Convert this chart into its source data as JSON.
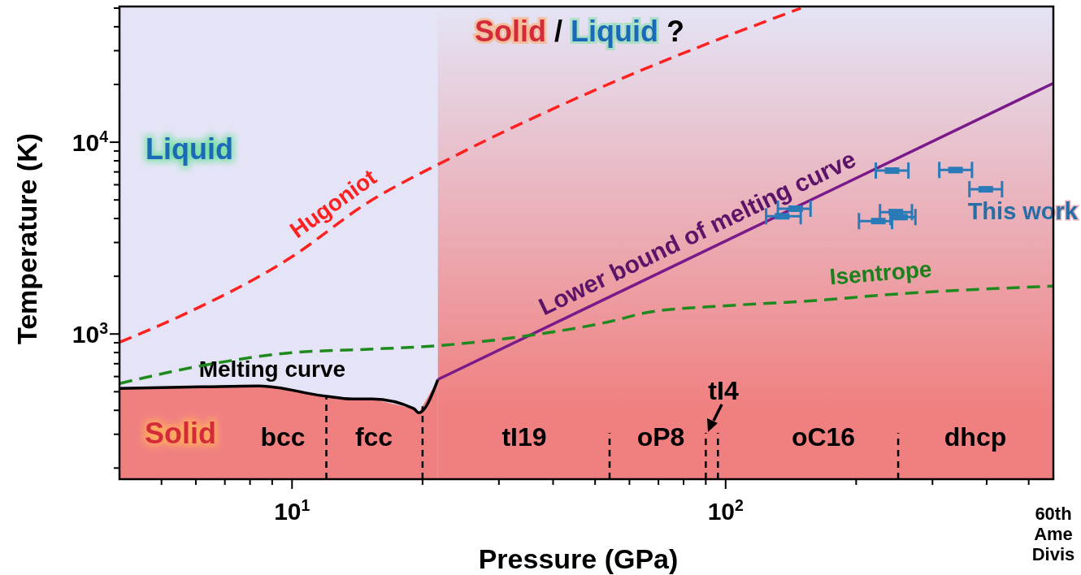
{
  "chart_data": {
    "type": "line",
    "log": "xy",
    "xlabel": "Pressure (GPa)",
    "ylabel": "Temperature (K)",
    "xlim": [
      4,
      570
    ],
    "ylim": [
      175,
      51000
    ],
    "xticks": [
      {
        "value": 5,
        "label": null
      },
      {
        "value": 6,
        "label": null
      },
      {
        "value": 7,
        "label": null
      },
      {
        "value": 8,
        "label": null
      },
      {
        "value": 9,
        "label": null
      },
      {
        "value": 10,
        "label": "10$^{1}$"
      },
      {
        "value": 20,
        "label": null
      },
      {
        "value": 30,
        "label": null
      },
      {
        "value": 40,
        "label": null
      },
      {
        "value": 50,
        "label": null
      },
      {
        "value": 60,
        "label": null
      },
      {
        "value": 70,
        "label": null
      },
      {
        "value": 80,
        "label": null
      },
      {
        "value": 90,
        "label": null
      },
      {
        "value": 100,
        "label": "10$^{2}$"
      },
      {
        "value": 200,
        "label": null
      },
      {
        "value": 300,
        "label": null
      },
      {
        "value": 400,
        "label": null
      },
      {
        "value": 500,
        "label": null
      }
    ],
    "yticks": [
      {
        "value": 200,
        "label": null
      },
      {
        "value": 300,
        "label": null
      },
      {
        "value": 400,
        "label": null
      },
      {
        "value": 500,
        "label": null
      },
      {
        "value": 600,
        "label": null
      },
      {
        "value": 700,
        "label": null
      },
      {
        "value": 800,
        "label": null
      },
      {
        "value": 900,
        "label": null
      },
      {
        "value": 1000,
        "label": "10$^{3}$"
      },
      {
        "value": 2000,
        "label": null
      },
      {
        "value": 3000,
        "label": null
      },
      {
        "value": 4000,
        "label": null
      },
      {
        "value": 5000,
        "label": null
      },
      {
        "value": 6000,
        "label": null
      },
      {
        "value": 7000,
        "label": null
      },
      {
        "value": 8000,
        "label": null
      },
      {
        "value": 9000,
        "label": null
      },
      {
        "value": 10000,
        "label": "10$^{4}$"
      },
      {
        "value": 20000,
        "label": null
      },
      {
        "value": 30000,
        "label": null
      },
      {
        "value": 40000,
        "label": null
      },
      {
        "value": 50000,
        "label": null
      }
    ],
    "series": [
      {
        "name": "Hugoniot",
        "color": "#ff2020",
        "line_style": "dashed",
        "x": [
          4,
          5.57,
          10,
          14.8,
          23.7,
          51.6,
          149
        ],
        "values": [
          905,
          1250,
          2530,
          4770,
          8460,
          19300,
          50000
        ]
      },
      {
        "name": "Melting curve",
        "color": "#000000",
        "line_style": "solid",
        "x": [
          4,
          6.2,
          8.4,
          11.8,
          13.8,
          15.3,
          19.1,
          19.6,
          21.7
        ],
        "values": [
          520,
          530,
          536,
          476,
          458,
          458,
          408,
          388,
          579
        ]
      },
      {
        "name": "Lower bound of melting curve",
        "color": "#7a1a8a",
        "line_style": "solid",
        "x": [
          21.7,
          570
        ],
        "values": [
          579,
          20300
        ]
      },
      {
        "name": "Isentrope",
        "color": "#1e8a1e",
        "line_style": "dashed",
        "x": [
          4,
          6.2,
          10,
          14.7,
          22.2,
          35,
          53.8,
          66.8,
          102,
          159,
          245,
          570
        ],
        "values": [
          552,
          684,
          799,
          831,
          873,
          980,
          1158,
          1301,
          1407,
          1491,
          1613,
          1777
        ]
      },
      {
        "name": "This work",
        "type": "scatter",
        "color": "#2a7ab8",
        "marker": "square",
        "x": [
          242,
          339,
          398,
          135,
          145,
          225,
          247,
          253
        ],
        "values": [
          7110,
          7160,
          5680,
          4110,
          4500,
          3880,
          4320,
          4070
        ],
        "xerrors": [
          [
            222,
            264
          ],
          [
            311,
            370
          ],
          [
            365,
            434
          ],
          [
            124,
            149
          ],
          [
            132,
            157
          ],
          [
            203,
            242
          ],
          [
            227,
            269
          ],
          [
            240,
            274
          ]
        ]
      }
    ],
    "bands": [
      {
        "axis": "x",
        "from": 21.7,
        "to": 570,
        "color": "#f08080",
        "label": null
      }
    ],
    "ref_lines": [
      {
        "axis": "x",
        "value": 12,
        "label": null,
        "color": "#000000",
        "line_style": "dashed"
      },
      {
        "axis": "x",
        "value": 20,
        "label": null,
        "color": "#000000",
        "line_style": "dashed"
      },
      {
        "axis": "x",
        "value": 54,
        "label": null,
        "color": "#000000",
        "line_style": "dashed"
      },
      {
        "axis": "x",
        "value": 90,
        "label": null,
        "color": "#000000",
        "line_style": "dashed"
      },
      {
        "axis": "x",
        "value": 96,
        "label": null,
        "color": "#000000",
        "line_style": "dashed"
      },
      {
        "axis": "x",
        "value": 250,
        "label": null,
        "color": "#000000",
        "line_style": "dashed"
      }
    ],
    "annotations": [
      "Liquid",
      "Solid",
      "bcc",
      "fcc",
      "tI19",
      "oP8",
      "tI4",
      "oC16",
      "dhcp",
      "Solid / Liquid ?",
      "60th Ame Divis"
    ]
  }
}
